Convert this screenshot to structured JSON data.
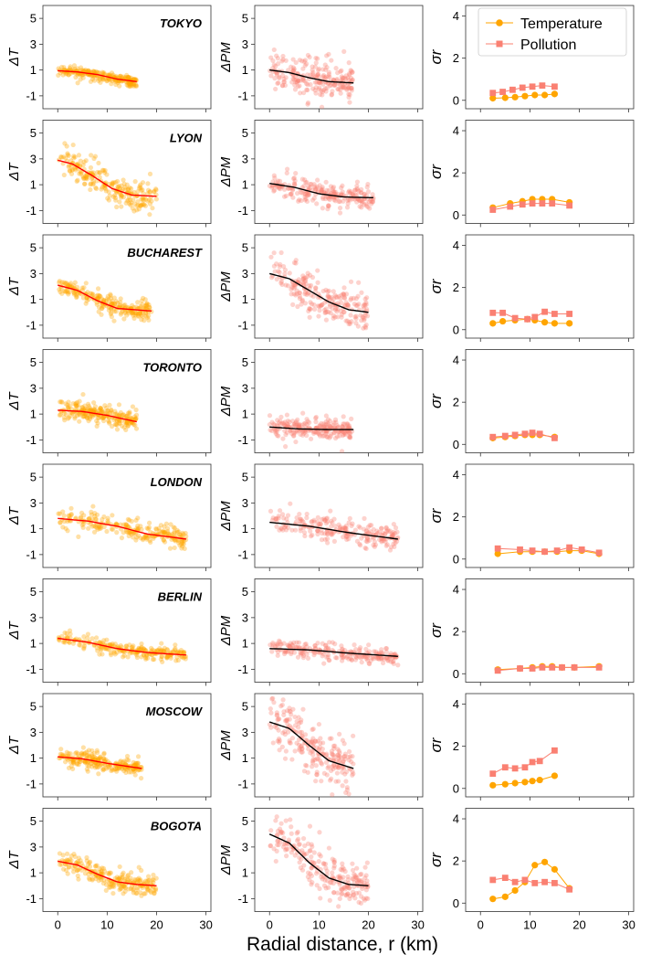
{
  "figure": {
    "xlabel": "Radial distance, r (km)",
    "x_ticks": [
      "0",
      "10",
      "20",
      "30"
    ],
    "colors": {
      "temperature": "#FFA500",
      "pollution": "#FA8072",
      "fit_temperature": "#FF0000",
      "fit_pollution": "#000000",
      "axis": "#333333"
    }
  },
  "legend": {
    "temperature_label": "Temperature",
    "pollution_label": "Pollution"
  },
  "chart_data": [
    {
      "type": "scatter",
      "city": "TOKYO",
      "column": "dT",
      "ylabel": "ΔT",
      "xlim": [
        -3,
        31
      ],
      "ylim": [
        -2,
        6
      ],
      "yticks": [
        "-1",
        "1",
        "3",
        "5"
      ],
      "scatter_range": [
        0,
        16
      ],
      "fit": [
        {
          "x": 0,
          "y": 0.95
        },
        {
          "x": 4,
          "y": 0.85
        },
        {
          "x": 8,
          "y": 0.65
        },
        {
          "x": 12,
          "y": 0.3
        },
        {
          "x": 16,
          "y": 0.1
        }
      ],
      "spread": 0.22
    },
    {
      "type": "scatter",
      "city": "TOKYO",
      "column": "dPM",
      "ylabel": "ΔPM",
      "xlim": [
        -3,
        31
      ],
      "ylim": [
        -2,
        6
      ],
      "yticks": [
        "-1",
        "1",
        "3",
        "5"
      ],
      "scatter_range": [
        0,
        17
      ],
      "fit": [
        {
          "x": 0,
          "y": 1.0
        },
        {
          "x": 4,
          "y": 0.8
        },
        {
          "x": 8,
          "y": 0.4
        },
        {
          "x": 12,
          "y": 0.1
        },
        {
          "x": 17,
          "y": 0.0
        }
      ],
      "spread": 0.75
    },
    {
      "type": "line",
      "city": "TOKYO",
      "column": "sigma",
      "ylabel": "σr",
      "xlim": [
        -3,
        31
      ],
      "ylim": [
        -0.4,
        4.5
      ],
      "yticks": [
        "0",
        "2",
        "4"
      ],
      "series": [
        {
          "name": "Temperature",
          "x": [
            2.5,
            5,
            7,
            9,
            11,
            13,
            15
          ],
          "values": [
            0.1,
            0.12,
            0.15,
            0.2,
            0.25,
            0.25,
            0.3
          ]
        },
        {
          "name": "Pollution",
          "x": [
            2.5,
            4.5,
            6.5,
            8.5,
            10.5,
            12.5,
            15
          ],
          "values": [
            0.35,
            0.4,
            0.5,
            0.6,
            0.65,
            0.7,
            0.65
          ]
        }
      ]
    },
    {
      "type": "scatter",
      "city": "LYON",
      "column": "dT",
      "ylabel": "ΔT",
      "xlim": [
        -3,
        31
      ],
      "ylim": [
        -2,
        6
      ],
      "yticks": [
        "-1",
        "1",
        "3",
        "5"
      ],
      "scatter_range": [
        0,
        20
      ],
      "fit": [
        {
          "x": 0,
          "y": 2.9
        },
        {
          "x": 3,
          "y": 2.6
        },
        {
          "x": 7,
          "y": 1.7
        },
        {
          "x": 11,
          "y": 0.7
        },
        {
          "x": 15,
          "y": 0.2
        },
        {
          "x": 20,
          "y": 0.1
        }
      ],
      "spread": 0.7
    },
    {
      "type": "scatter",
      "city": "LYON",
      "column": "dPM",
      "ylabel": "ΔPM",
      "xlim": [
        -3,
        31
      ],
      "ylim": [
        -2,
        6
      ],
      "yticks": [
        "-1",
        "1",
        "3",
        "5"
      ],
      "scatter_range": [
        0,
        21
      ],
      "fit": [
        {
          "x": 0,
          "y": 1.1
        },
        {
          "x": 5,
          "y": 0.8
        },
        {
          "x": 10,
          "y": 0.3
        },
        {
          "x": 15,
          "y": 0.05
        },
        {
          "x": 20,
          "y": 0.0
        }
      ],
      "spread": 0.5
    },
    {
      "type": "line",
      "city": "LYON",
      "column": "sigma",
      "ylabel": "σr",
      "xlim": [
        -3,
        31
      ],
      "ylim": [
        -0.4,
        4.5
      ],
      "yticks": [
        "0",
        "2",
        "4"
      ],
      "series": [
        {
          "name": "Temperature",
          "x": [
            2.5,
            6,
            8.5,
            10.5,
            12.5,
            14.5,
            18
          ],
          "values": [
            0.35,
            0.55,
            0.65,
            0.75,
            0.75,
            0.75,
            0.6
          ]
        },
        {
          "name": "Pollution",
          "x": [
            2.5,
            6,
            8.5,
            10.5,
            12.5,
            14.5,
            18
          ],
          "values": [
            0.25,
            0.4,
            0.5,
            0.55,
            0.55,
            0.55,
            0.45
          ]
        }
      ]
    },
    {
      "type": "scatter",
      "city": "BUCHAREST",
      "column": "dT",
      "ylabel": "ΔT",
      "xlim": [
        -3,
        31
      ],
      "ylim": [
        -2,
        6
      ],
      "yticks": [
        "-1",
        "1",
        "3",
        "5"
      ],
      "scatter_range": [
        0,
        19
      ],
      "fit": [
        {
          "x": 0,
          "y": 2.1
        },
        {
          "x": 4,
          "y": 1.7
        },
        {
          "x": 8,
          "y": 0.9
        },
        {
          "x": 12,
          "y": 0.3
        },
        {
          "x": 19,
          "y": 0.1
        }
      ],
      "spread": 0.4
    },
    {
      "type": "scatter",
      "city": "BUCHAREST",
      "column": "dPM",
      "ylabel": "ΔPM",
      "xlim": [
        -3,
        31
      ],
      "ylim": [
        -2,
        6
      ],
      "yticks": [
        "-1",
        "1",
        "3",
        "5"
      ],
      "scatter_range": [
        0,
        20
      ],
      "fit": [
        {
          "x": 0,
          "y": 3.0
        },
        {
          "x": 4,
          "y": 2.6
        },
        {
          "x": 8,
          "y": 1.7
        },
        {
          "x": 12,
          "y": 0.8
        },
        {
          "x": 16,
          "y": 0.2
        },
        {
          "x": 20,
          "y": 0.0
        }
      ],
      "spread": 0.9
    },
    {
      "type": "line",
      "city": "BUCHAREST",
      "column": "sigma",
      "ylabel": "σr",
      "xlim": [
        -3,
        31
      ],
      "ylim": [
        -0.4,
        4.5
      ],
      "yticks": [
        "0",
        "2",
        "4"
      ],
      "series": [
        {
          "name": "Temperature",
          "x": [
            2.5,
            4.5,
            7,
            9.5,
            11,
            13,
            15,
            18
          ],
          "values": [
            0.3,
            0.4,
            0.45,
            0.5,
            0.45,
            0.35,
            0.3,
            0.3
          ]
        },
        {
          "name": "Pollution",
          "x": [
            2.5,
            4.5,
            7,
            9.5,
            11,
            13,
            15,
            18
          ],
          "values": [
            0.8,
            0.8,
            0.55,
            0.5,
            0.6,
            0.85,
            0.75,
            0.75
          ]
        }
      ]
    },
    {
      "type": "scatter",
      "city": "TORONTO",
      "column": "dT",
      "ylabel": "ΔT",
      "xlim": [
        -3,
        31
      ],
      "ylim": [
        -2,
        6
      ],
      "yticks": [
        "-1",
        "1",
        "3",
        "5"
      ],
      "scatter_range": [
        0,
        16
      ],
      "fit": [
        {
          "x": 0,
          "y": 1.3
        },
        {
          "x": 5,
          "y": 1.2
        },
        {
          "x": 10,
          "y": 0.9
        },
        {
          "x": 16,
          "y": 0.4
        }
      ],
      "spread": 0.4
    },
    {
      "type": "scatter",
      "city": "TORONTO",
      "column": "dPM",
      "ylabel": "ΔPM",
      "xlim": [
        -3,
        31
      ],
      "ylim": [
        -2,
        6
      ],
      "yticks": [
        "-1",
        "1",
        "3",
        "5"
      ],
      "scatter_range": [
        0,
        17
      ],
      "fit": [
        {
          "x": 0,
          "y": 0.0
        },
        {
          "x": 6,
          "y": -0.15
        },
        {
          "x": 12,
          "y": -0.2
        },
        {
          "x": 17,
          "y": -0.2
        }
      ],
      "spread": 0.45
    },
    {
      "type": "line",
      "city": "TORONTO",
      "column": "sigma",
      "ylabel": "σr",
      "xlim": [
        -3,
        31
      ],
      "ylim": [
        -0.4,
        4.5
      ],
      "yticks": [
        "0",
        "2",
        "4"
      ],
      "series": [
        {
          "name": "Temperature",
          "x": [
            2.5,
            5,
            7,
            9,
            10.5,
            12,
            15
          ],
          "values": [
            0.3,
            0.35,
            0.4,
            0.45,
            0.45,
            0.45,
            0.35
          ]
        },
        {
          "name": "Pollution",
          "x": [
            2.5,
            5,
            7,
            9,
            10.5,
            12,
            15
          ],
          "values": [
            0.35,
            0.4,
            0.45,
            0.5,
            0.55,
            0.5,
            0.3
          ]
        }
      ]
    },
    {
      "type": "scatter",
      "city": "LONDON",
      "column": "dT",
      "ylabel": "ΔT",
      "xlim": [
        -3,
        31
      ],
      "ylim": [
        -2,
        6
      ],
      "yticks": [
        "-1",
        "1",
        "3",
        "5"
      ],
      "scatter_range": [
        0,
        26
      ],
      "fit": [
        {
          "x": 0,
          "y": 1.8
        },
        {
          "x": 6,
          "y": 1.6
        },
        {
          "x": 12,
          "y": 1.2
        },
        {
          "x": 18,
          "y": 0.6
        },
        {
          "x": 26,
          "y": 0.2
        }
      ],
      "spread": 0.45
    },
    {
      "type": "scatter",
      "city": "LONDON",
      "column": "dPM",
      "ylabel": "ΔPM",
      "xlim": [
        -3,
        31
      ],
      "ylim": [
        -2,
        6
      ],
      "yticks": [
        "-1",
        "1",
        "3",
        "5"
      ],
      "scatter_range": [
        0,
        26
      ],
      "fit": [
        {
          "x": 0,
          "y": 1.5
        },
        {
          "x": 8,
          "y": 1.2
        },
        {
          "x": 16,
          "y": 0.7
        },
        {
          "x": 26,
          "y": 0.2
        }
      ],
      "spread": 0.55
    },
    {
      "type": "line",
      "city": "LONDON",
      "column": "sigma",
      "ylabel": "σr",
      "xlim": [
        -3,
        31
      ],
      "ylim": [
        -0.4,
        4.5
      ],
      "yticks": [
        "0",
        "2",
        "4"
      ],
      "series": [
        {
          "name": "Temperature",
          "x": [
            3.5,
            8,
            10.5,
            13,
            15.5,
            18,
            20.5,
            24
          ],
          "values": [
            0.25,
            0.35,
            0.35,
            0.35,
            0.35,
            0.4,
            0.4,
            0.25
          ]
        },
        {
          "name": "Pollution",
          "x": [
            3.5,
            8,
            10.5,
            13,
            15.5,
            18,
            20.5,
            24
          ],
          "values": [
            0.5,
            0.45,
            0.4,
            0.35,
            0.4,
            0.55,
            0.45,
            0.3
          ]
        }
      ]
    },
    {
      "type": "scatter",
      "city": "BERLIN",
      "column": "dT",
      "ylabel": "ΔT",
      "xlim": [
        -3,
        31
      ],
      "ylim": [
        -2,
        6
      ],
      "yticks": [
        "-1",
        "1",
        "3",
        "5"
      ],
      "scatter_range": [
        0,
        26
      ],
      "fit": [
        {
          "x": 0,
          "y": 1.4
        },
        {
          "x": 6,
          "y": 1.1
        },
        {
          "x": 12,
          "y": 0.6
        },
        {
          "x": 18,
          "y": 0.3
        },
        {
          "x": 26,
          "y": 0.1
        }
      ],
      "spread": 0.3
    },
    {
      "type": "scatter",
      "city": "BERLIN",
      "column": "dPM",
      "ylabel": "ΔPM",
      "xlim": [
        -3,
        31
      ],
      "ylim": [
        -2,
        6
      ],
      "yticks": [
        "-1",
        "1",
        "3",
        "5"
      ],
      "scatter_range": [
        0,
        26
      ],
      "fit": [
        {
          "x": 0,
          "y": 0.6
        },
        {
          "x": 8,
          "y": 0.5
        },
        {
          "x": 16,
          "y": 0.25
        },
        {
          "x": 26,
          "y": 0.0
        }
      ],
      "spread": 0.35
    },
    {
      "type": "line",
      "city": "BERLIN",
      "column": "sigma",
      "ylabel": "σr",
      "xlim": [
        -3,
        31
      ],
      "ylim": [
        -0.4,
        4.5
      ],
      "yticks": [
        "0",
        "2",
        "4"
      ],
      "series": [
        {
          "name": "Temperature",
          "x": [
            3.5,
            8,
            10.5,
            12.5,
            14.5,
            16.5,
            19,
            24
          ],
          "values": [
            0.2,
            0.25,
            0.3,
            0.35,
            0.35,
            0.3,
            0.3,
            0.35
          ]
        },
        {
          "name": "Pollution",
          "x": [
            3.5,
            8,
            10.5,
            12.5,
            14.5,
            16.5,
            19,
            24
          ],
          "values": [
            0.15,
            0.25,
            0.25,
            0.3,
            0.3,
            0.3,
            0.3,
            0.3
          ]
        }
      ]
    },
    {
      "type": "scatter",
      "city": "MOSCOW",
      "column": "dT",
      "ylabel": "ΔT",
      "xlim": [
        -3,
        31
      ],
      "ylim": [
        -2,
        6
      ],
      "yticks": [
        "-1",
        "1",
        "3",
        "5"
      ],
      "scatter_range": [
        0,
        17
      ],
      "fit": [
        {
          "x": 0,
          "y": 1.1
        },
        {
          "x": 5,
          "y": 0.95
        },
        {
          "x": 10,
          "y": 0.6
        },
        {
          "x": 17,
          "y": 0.2
        }
      ],
      "spread": 0.35
    },
    {
      "type": "scatter",
      "city": "MOSCOW",
      "column": "dPM",
      "ylabel": "ΔPM",
      "xlim": [
        -3,
        31
      ],
      "ylim": [
        -2,
        6
      ],
      "yticks": [
        "-1",
        "1",
        "3",
        "5"
      ],
      "scatter_range": [
        0,
        17
      ],
      "fit": [
        {
          "x": 0,
          "y": 3.8
        },
        {
          "x": 4,
          "y": 3.3
        },
        {
          "x": 8,
          "y": 2.0
        },
        {
          "x": 12,
          "y": 0.8
        },
        {
          "x": 17,
          "y": 0.2
        }
      ],
      "spread": 1.1
    },
    {
      "type": "line",
      "city": "MOSCOW",
      "column": "sigma",
      "ylabel": "σr",
      "xlim": [
        -3,
        31
      ],
      "ylim": [
        -0.4,
        4.5
      ],
      "yticks": [
        "0",
        "2",
        "4"
      ],
      "series": [
        {
          "name": "Temperature",
          "x": [
            2.5,
            5,
            7,
            9,
            10.5,
            12,
            15
          ],
          "values": [
            0.15,
            0.2,
            0.25,
            0.3,
            0.35,
            0.4,
            0.6
          ]
        },
        {
          "name": "Pollution",
          "x": [
            2.5,
            5,
            7,
            9,
            10.5,
            12,
            15
          ],
          "values": [
            0.7,
            1.0,
            0.95,
            1.0,
            1.25,
            1.3,
            1.8
          ]
        }
      ]
    },
    {
      "type": "scatter",
      "city": "BOGOTA",
      "column": "dT",
      "ylabel": "ΔT",
      "xlim": [
        -3,
        31
      ],
      "ylim": [
        -2,
        6
      ],
      "yticks": [
        "-1",
        "1",
        "3",
        "5"
      ],
      "scatter_range": [
        0,
        20
      ],
      "fit": [
        {
          "x": 0,
          "y": 1.9
        },
        {
          "x": 4,
          "y": 1.6
        },
        {
          "x": 8,
          "y": 0.9
        },
        {
          "x": 12,
          "y": 0.3
        },
        {
          "x": 16,
          "y": 0.1
        },
        {
          "x": 20,
          "y": 0.0
        }
      ],
      "spread": 0.5
    },
    {
      "type": "scatter",
      "city": "BOGOTA",
      "column": "dPM",
      "ylabel": "ΔPM",
      "xlim": [
        -3,
        31
      ],
      "ylim": [
        -2,
        6
      ],
      "yticks": [
        "-1",
        "1",
        "3",
        "5"
      ],
      "scatter_range": [
        0,
        20
      ],
      "fit": [
        {
          "x": 0,
          "y": 4.0
        },
        {
          "x": 4,
          "y": 3.3
        },
        {
          "x": 8,
          "y": 1.8
        },
        {
          "x": 12,
          "y": 0.6
        },
        {
          "x": 16,
          "y": 0.1
        },
        {
          "x": 20,
          "y": 0.0
        }
      ],
      "spread": 1.0
    },
    {
      "type": "line",
      "city": "BOGOTA",
      "column": "sigma",
      "ylabel": "σr",
      "xlim": [
        -3,
        31
      ],
      "ylim": [
        -0.4,
        4.5
      ],
      "yticks": [
        "0",
        "2",
        "4"
      ],
      "series": [
        {
          "name": "Temperature",
          "x": [
            2.5,
            5,
            7,
            9,
            11,
            13,
            15,
            18
          ],
          "values": [
            0.2,
            0.3,
            0.6,
            1.0,
            1.8,
            1.95,
            1.6,
            0.7
          ]
        },
        {
          "name": "Pollution",
          "x": [
            2.5,
            5,
            7,
            9,
            11,
            13,
            15,
            18
          ],
          "values": [
            1.1,
            1.2,
            1.0,
            1.1,
            0.95,
            1.0,
            0.95,
            0.65
          ]
        }
      ]
    }
  ]
}
